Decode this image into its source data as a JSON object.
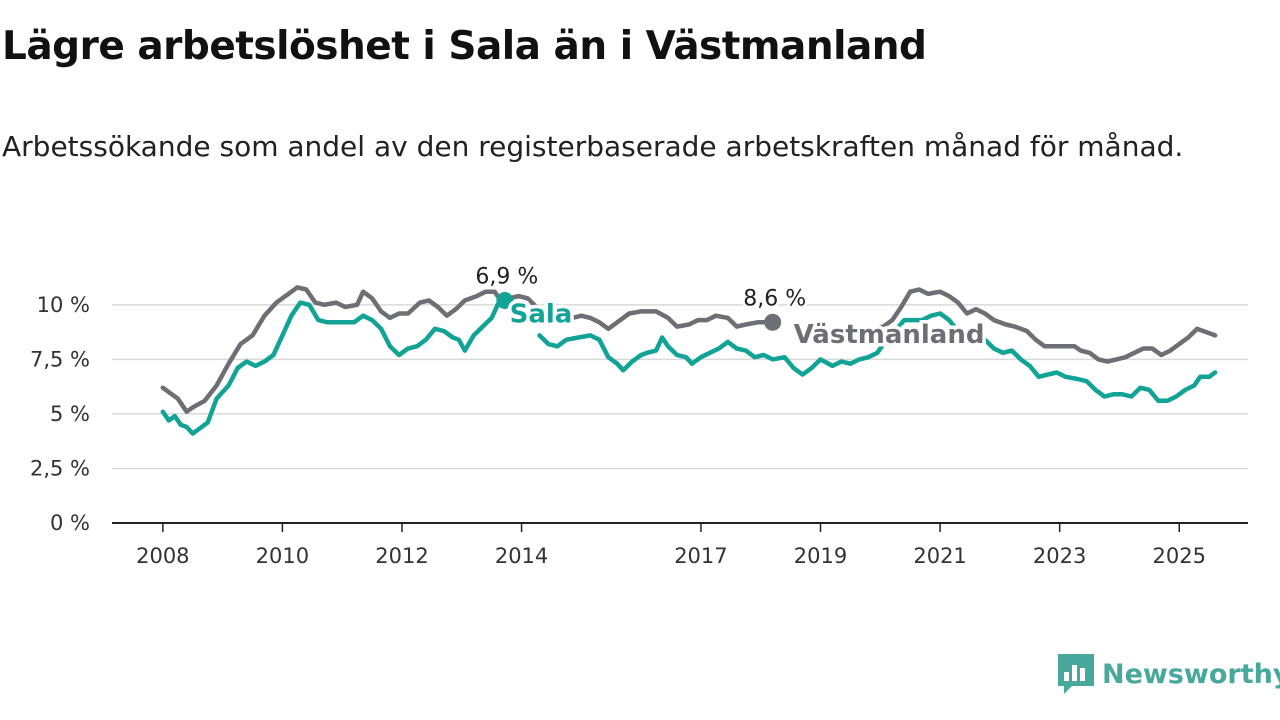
{
  "header": {
    "title": "Lägre arbetslöshet i Sala än i Västmanland",
    "subtitle": "Arbetssökande som andel av den registerbaserade arbetskraften månad för månad."
  },
  "brand": {
    "name": "Newsworthy",
    "icon": "newsworthy-logo-icon",
    "color": "#47a89b"
  },
  "chart_data": {
    "type": "line",
    "title": "Lägre arbetslöshet i Sala än i Västmanland",
    "subtitle": "Arbetssökande som andel av den registerbaserade arbetskraften månad för månad.",
    "ylim": [
      0,
      11
    ],
    "yticks": [
      {
        "value": 0,
        "label": "0 %"
      },
      {
        "value": 2.5,
        "label": "2,5 %"
      },
      {
        "value": 5,
        "label": "5 %"
      },
      {
        "value": 7.5,
        "label": "7,5 %"
      },
      {
        "value": 10,
        "label": "10 %"
      }
    ],
    "xlim": [
      2007.15,
      2026.15
    ],
    "xticks": [
      {
        "value": 2008,
        "label": "2008"
      },
      {
        "value": 2010,
        "label": "2010"
      },
      {
        "value": 2012,
        "label": "2012"
      },
      {
        "value": 2014,
        "label": "2014"
      },
      {
        "value": 2017,
        "label": "2017"
      },
      {
        "value": 2019,
        "label": "2019"
      },
      {
        "value": 2021,
        "label": "2021"
      },
      {
        "value": 2023,
        "label": "2023"
      },
      {
        "value": 2025,
        "label": "2025"
      }
    ],
    "grid": true,
    "series": [
      {
        "name": "Västmanland",
        "color": "#6e6e75",
        "end_label": "8,6 %",
        "points": [
          [
            2008.0,
            6.2
          ],
          [
            2008.15,
            5.9
          ],
          [
            2008.25,
            5.7
          ],
          [
            2008.4,
            5.1
          ],
          [
            2008.5,
            5.3
          ],
          [
            2008.7,
            5.6
          ],
          [
            2008.9,
            6.3
          ],
          [
            2009.1,
            7.3
          ],
          [
            2009.3,
            8.2
          ],
          [
            2009.5,
            8.6
          ],
          [
            2009.7,
            9.5
          ],
          [
            2009.9,
            10.1
          ],
          [
            2010.1,
            10.5
          ],
          [
            2010.25,
            10.8
          ],
          [
            2010.4,
            10.7
          ],
          [
            2010.55,
            10.1
          ],
          [
            2010.7,
            10.0
          ],
          [
            2010.9,
            10.1
          ],
          [
            2011.05,
            9.9
          ],
          [
            2011.25,
            10.0
          ],
          [
            2011.35,
            10.6
          ],
          [
            2011.5,
            10.3
          ],
          [
            2011.65,
            9.7
          ],
          [
            2011.8,
            9.4
          ],
          [
            2011.95,
            9.6
          ],
          [
            2012.1,
            9.6
          ],
          [
            2012.3,
            10.1
          ],
          [
            2012.45,
            10.2
          ],
          [
            2012.6,
            9.9
          ],
          [
            2012.75,
            9.5
          ],
          [
            2012.9,
            9.8
          ],
          [
            2013.05,
            10.2
          ],
          [
            2013.25,
            10.4
          ],
          [
            2013.4,
            10.6
          ],
          [
            2013.55,
            10.6
          ],
          [
            2013.65,
            10.2
          ],
          [
            2013.8,
            10.3
          ],
          [
            2013.95,
            10.4
          ],
          [
            2014.1,
            10.3
          ],
          [
            2014.25,
            9.9
          ],
          [
            2014.4,
            9.3
          ],
          [
            2014.5,
            9.2
          ],
          [
            2014.65,
            9.3
          ],
          [
            2014.85,
            9.4
          ],
          [
            2015.0,
            9.5
          ],
          [
            2015.15,
            9.4
          ],
          [
            2015.3,
            9.2
          ],
          [
            2015.45,
            8.9
          ],
          [
            2015.6,
            9.2
          ],
          [
            2015.8,
            9.6
          ],
          [
            2016.0,
            9.7
          ],
          [
            2016.25,
            9.7
          ],
          [
            2016.45,
            9.4
          ],
          [
            2016.6,
            9.0
          ],
          [
            2016.8,
            9.1
          ],
          [
            2016.95,
            9.3
          ],
          [
            2017.1,
            9.3
          ],
          [
            2017.25,
            9.5
          ],
          [
            2017.45,
            9.4
          ],
          [
            2017.6,
            9.0
          ],
          [
            2017.75,
            9.1
          ],
          [
            2017.95,
            9.2
          ],
          [
            2018.2,
            9.2
          ]
        ]
      },
      {
        "name": "Västmanland",
        "color": "#6e6e75",
        "points": [
          [
            2019.9,
            8.9
          ],
          [
            2020.05,
            9.0
          ],
          [
            2020.2,
            9.3
          ],
          [
            2020.35,
            9.9
          ],
          [
            2020.5,
            10.6
          ],
          [
            2020.65,
            10.7
          ],
          [
            2020.8,
            10.5
          ],
          [
            2021.0,
            10.6
          ],
          [
            2021.15,
            10.4
          ],
          [
            2021.3,
            10.1
          ],
          [
            2021.45,
            9.6
          ],
          [
            2021.6,
            9.8
          ],
          [
            2021.75,
            9.6
          ],
          [
            2021.9,
            9.3
          ],
          [
            2022.1,
            9.1
          ],
          [
            2022.25,
            9.0
          ],
          [
            2022.45,
            8.8
          ],
          [
            2022.6,
            8.4
          ],
          [
            2022.75,
            8.1
          ],
          [
            2022.9,
            8.1
          ],
          [
            2023.1,
            8.1
          ],
          [
            2023.25,
            8.1
          ],
          [
            2023.35,
            7.9
          ],
          [
            2023.5,
            7.8
          ],
          [
            2023.65,
            7.5
          ],
          [
            2023.8,
            7.4
          ],
          [
            2023.95,
            7.5
          ],
          [
            2024.1,
            7.6
          ],
          [
            2024.25,
            7.8
          ],
          [
            2024.4,
            8.0
          ],
          [
            2024.55,
            8.0
          ],
          [
            2024.7,
            7.7
          ],
          [
            2024.85,
            7.9
          ],
          [
            2025.0,
            8.2
          ],
          [
            2025.15,
            8.5
          ],
          [
            2025.3,
            8.9
          ],
          [
            2025.4,
            8.8
          ],
          [
            2025.5,
            8.7
          ],
          [
            2025.6,
            8.6
          ]
        ]
      },
      {
        "name": "Sala",
        "color": "#11a396",
        "end_label": "6,9 %",
        "points": [
          [
            2008.0,
            5.1
          ],
          [
            2008.1,
            4.7
          ],
          [
            2008.2,
            4.9
          ],
          [
            2008.3,
            4.5
          ],
          [
            2008.4,
            4.4
          ],
          [
            2008.5,
            4.1
          ],
          [
            2008.6,
            4.3
          ],
          [
            2008.75,
            4.6
          ],
          [
            2008.9,
            5.7
          ],
          [
            2009.1,
            6.3
          ],
          [
            2009.25,
            7.1
          ],
          [
            2009.4,
            7.4
          ],
          [
            2009.55,
            7.2
          ],
          [
            2009.7,
            7.4
          ],
          [
            2009.85,
            7.7
          ],
          [
            2010.0,
            8.6
          ],
          [
            2010.15,
            9.5
          ],
          [
            2010.3,
            10.1
          ],
          [
            2010.45,
            10.0
          ],
          [
            2010.6,
            9.3
          ],
          [
            2010.75,
            9.2
          ],
          [
            2011.0,
            9.2
          ],
          [
            2011.2,
            9.2
          ],
          [
            2011.35,
            9.5
          ],
          [
            2011.5,
            9.3
          ],
          [
            2011.65,
            8.9
          ],
          [
            2011.8,
            8.1
          ],
          [
            2011.95,
            7.7
          ],
          [
            2012.1,
            8.0
          ],
          [
            2012.25,
            8.1
          ],
          [
            2012.4,
            8.4
          ],
          [
            2012.55,
            8.9
          ],
          [
            2012.7,
            8.8
          ],
          [
            2012.85,
            8.5
          ],
          [
            2012.95,
            8.4
          ],
          [
            2013.05,
            7.9
          ],
          [
            2013.2,
            8.6
          ],
          [
            2013.35,
            9.0
          ],
          [
            2013.5,
            9.4
          ],
          [
            2013.6,
            10.0
          ],
          [
            2013.72,
            10.2
          ]
        ]
      },
      {
        "name": "Sala",
        "color": "#11a396",
        "points": [
          [
            2014.3,
            8.6
          ],
          [
            2014.45,
            8.2
          ],
          [
            2014.6,
            8.1
          ],
          [
            2014.75,
            8.4
          ],
          [
            2014.95,
            8.5
          ],
          [
            2015.15,
            8.6
          ],
          [
            2015.3,
            8.4
          ],
          [
            2015.45,
            7.6
          ],
          [
            2015.6,
            7.3
          ],
          [
            2015.7,
            7.0
          ],
          [
            2015.85,
            7.4
          ],
          [
            2016.0,
            7.7
          ],
          [
            2016.1,
            7.8
          ],
          [
            2016.25,
            7.9
          ],
          [
            2016.35,
            8.5
          ],
          [
            2016.45,
            8.1
          ],
          [
            2016.6,
            7.7
          ],
          [
            2016.75,
            7.6
          ],
          [
            2016.85,
            7.3
          ],
          [
            2017.0,
            7.6
          ],
          [
            2017.15,
            7.8
          ],
          [
            2017.3,
            8.0
          ],
          [
            2017.45,
            8.3
          ],
          [
            2017.6,
            8.0
          ],
          [
            2017.75,
            7.9
          ],
          [
            2017.9,
            7.6
          ],
          [
            2018.05,
            7.7
          ],
          [
            2018.2,
            7.5
          ],
          [
            2018.4,
            7.6
          ],
          [
            2018.55,
            7.1
          ],
          [
            2018.7,
            6.8
          ],
          [
            2018.85,
            7.1
          ],
          [
            2019.0,
            7.5
          ],
          [
            2019.2,
            7.2
          ],
          [
            2019.35,
            7.4
          ],
          [
            2019.5,
            7.3
          ],
          [
            2019.65,
            7.5
          ],
          [
            2019.8,
            7.6
          ],
          [
            2019.95,
            7.8
          ],
          [
            2020.1,
            8.4
          ],
          [
            2020.25,
            8.8
          ],
          [
            2020.4,
            9.3
          ],
          [
            2020.55,
            9.3
          ],
          [
            2020.7,
            9.3
          ],
          [
            2020.85,
            9.5
          ],
          [
            2021.0,
            9.6
          ],
          [
            2021.15,
            9.3
          ],
          [
            2021.3,
            8.8
          ],
          [
            2021.45,
            8.6
          ],
          [
            2021.6,
            8.6
          ],
          [
            2021.75,
            8.4
          ],
          [
            2021.9,
            8.0
          ],
          [
            2022.05,
            7.8
          ],
          [
            2022.2,
            7.9
          ],
          [
            2022.35,
            7.5
          ],
          [
            2022.5,
            7.2
          ],
          [
            2022.65,
            6.7
          ],
          [
            2022.8,
            6.8
          ],
          [
            2022.95,
            6.9
          ],
          [
            2023.1,
            6.7
          ],
          [
            2023.3,
            6.6
          ],
          [
            2023.45,
            6.5
          ],
          [
            2023.6,
            6.1
          ],
          [
            2023.75,
            5.8
          ],
          [
            2023.9,
            5.9
          ],
          [
            2024.05,
            5.9
          ],
          [
            2024.2,
            5.8
          ],
          [
            2024.35,
            6.2
          ],
          [
            2024.5,
            6.1
          ],
          [
            2024.65,
            5.6
          ],
          [
            2024.8,
            5.6
          ],
          [
            2024.95,
            5.8
          ],
          [
            2025.1,
            6.1
          ],
          [
            2025.25,
            6.3
          ],
          [
            2025.35,
            6.7
          ],
          [
            2025.5,
            6.7
          ],
          [
            2025.6,
            6.9
          ]
        ]
      }
    ],
    "annotations": [
      {
        "text": "Sala",
        "x": 2013.8,
        "y": 9.2,
        "color": "#11a396"
      },
      {
        "text": "Västmanland",
        "x": 2018.55,
        "y": 8.25,
        "color": "#6e6e75"
      }
    ]
  }
}
